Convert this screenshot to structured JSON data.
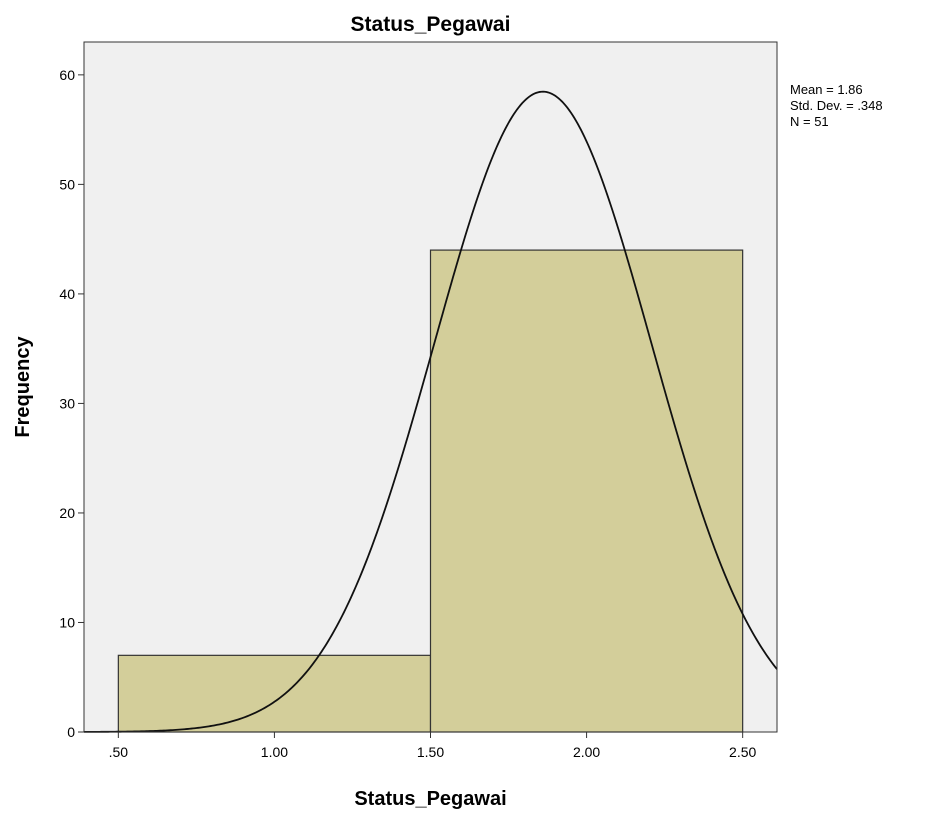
{
  "chart_data": {
    "type": "bar",
    "title": "Status_Pegawai",
    "xlabel": "Status_Pegawai",
    "ylabel": "Frequency",
    "bins": [
      {
        "start": 0.5,
        "end": 1.5,
        "value": 7
      },
      {
        "start": 1.5,
        "end": 2.5,
        "value": 44
      }
    ],
    "x_ticks": [
      {
        "value": 0.5,
        "label": ".50"
      },
      {
        "value": 1.0,
        "label": "1.00"
      },
      {
        "value": 1.5,
        "label": "1.50"
      },
      {
        "value": 2.0,
        "label": "2.00"
      },
      {
        "value": 2.5,
        "label": "2.50"
      }
    ],
    "y_ticks": [
      {
        "value": 0,
        "label": "0"
      },
      {
        "value": 10,
        "label": "10"
      },
      {
        "value": 20,
        "label": "20"
      },
      {
        "value": 30,
        "label": "30"
      },
      {
        "value": 40,
        "label": "40"
      },
      {
        "value": 50,
        "label": "50"
      },
      {
        "value": 60,
        "label": "60"
      }
    ],
    "xlim": [
      0.39,
      2.61
    ],
    "ylim": [
      0,
      63
    ],
    "grid": false,
    "normal_curve": {
      "mean": 1.86,
      "std": 0.348,
      "n": 51,
      "bin_width": 1.0
    },
    "stats": {
      "mean": "Mean = 1.86",
      "std_dev": "Std. Dev. = .348",
      "n": "N = 51"
    },
    "colors": {
      "plot_background": "#f0f0f0",
      "bar_fill": "#d3ce9a",
      "bar_stroke": "#333333",
      "curve": "#111111",
      "axis": "#333333"
    }
  }
}
